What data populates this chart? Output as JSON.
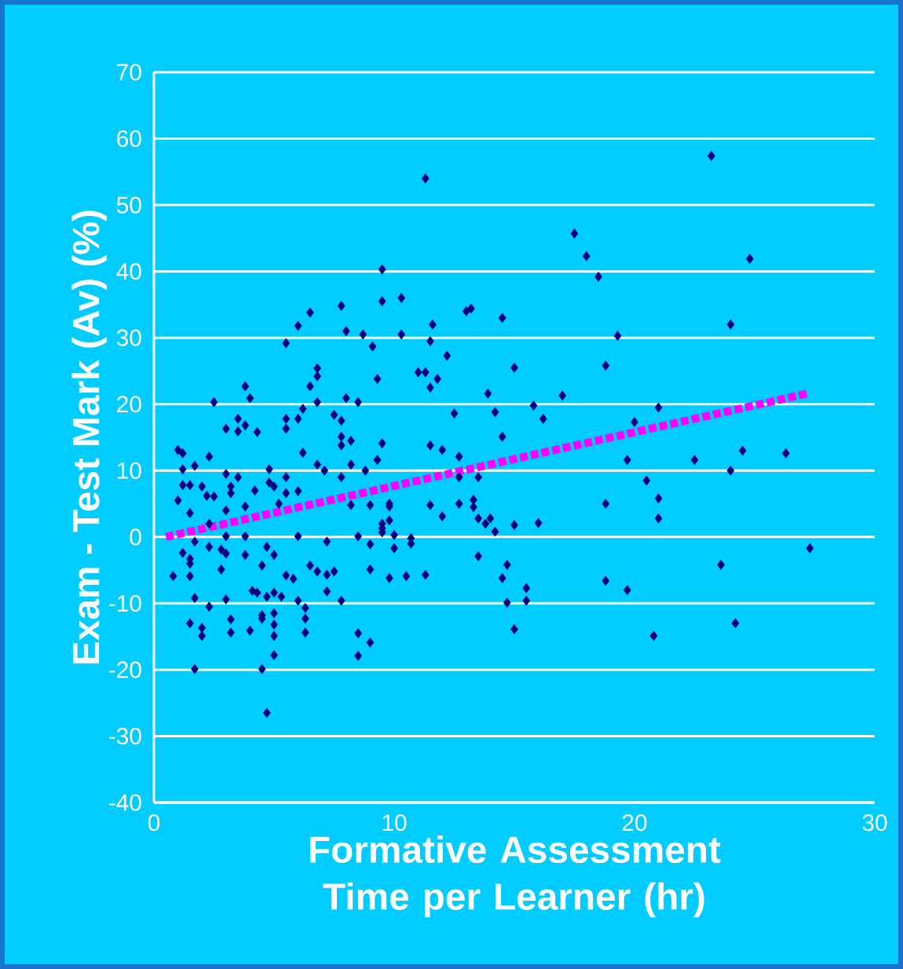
{
  "chart_data": {
    "type": "scatter",
    "xlabel": "Formative Assessment Time per Learner (hr)",
    "ylabel": "Exam - Test Mark (Av) (%)",
    "xlim": [
      0,
      30
    ],
    "ylim": [
      -40,
      70
    ],
    "xticks": [
      0,
      10,
      20,
      30
    ],
    "yticks": [
      -40,
      -30,
      -20,
      -10,
      0,
      10,
      20,
      30,
      40,
      50,
      60,
      70
    ],
    "grid": "y",
    "marker": "diamond",
    "series": [
      {
        "color": "#000080",
        "x": [
          11.3,
          23.2,
          24.8,
          24.0,
          19.3,
          21.0,
          20.0,
          19.7,
          22.5,
          24.5,
          26.3,
          24.0,
          20.5,
          21.0,
          21.0,
          27.3,
          23.6,
          19.7,
          24.2,
          20.8,
          9.5,
          9.5,
          10.3,
          17.5,
          18.0,
          18.5,
          13.0,
          13.2,
          14.5,
          10.3,
          11.6,
          11.5,
          12.2,
          11.0,
          11.3,
          11.8,
          11.5,
          9.3,
          15.0,
          18.8,
          13.9,
          17.0,
          12.5,
          14.2,
          15.8,
          16.2,
          9.5,
          11.5,
          12.0,
          12.7,
          14.5,
          9.3,
          12.7,
          13.5,
          9.8,
          9.8,
          11.5,
          12.7,
          13.3,
          13.3,
          12.0,
          9.8,
          9.5,
          9.5,
          10.0,
          10.7,
          10.7,
          10.0,
          13.5,
          13.8,
          14.0,
          14.2,
          15.0,
          16.0,
          18.8,
          13.5,
          14.7,
          14.5,
          15.5,
          14.7,
          15.5,
          15.0,
          9.8,
          10.5,
          11.3,
          18.8,
          5.5,
          6.0,
          6.5,
          7.8,
          8.0,
          8.7,
          9.1,
          6.8,
          6.8,
          6.5,
          6.8,
          6.2,
          6.0,
          5.5,
          5.5,
          7.5,
          7.8,
          8.0,
          8.5,
          7.8,
          7.8,
          8.2,
          6.2,
          3.8,
          4.0,
          2.5,
          3.5,
          3.0,
          3.5,
          3.8,
          4.3,
          1.0,
          1.2,
          2.3,
          1.7,
          1.2,
          4.8,
          8.2,
          6.8,
          1.2,
          1.5,
          3.0,
          3.5,
          2.0,
          2.2,
          2.5,
          3.2,
          3.2,
          4.2,
          4.8,
          5.0,
          5.5,
          5.5,
          6.0,
          7.1,
          7.8,
          8.8,
          1.0,
          1.5,
          2.3,
          3.0,
          3.8,
          5.2,
          8.2,
          9.0,
          9.5,
          6.0,
          8.5,
          0.8,
          1.2,
          1.5,
          1.5,
          1.5,
          1.7,
          2.3,
          1.5,
          2.0,
          2.0,
          1.7,
          1.7,
          2.3,
          2.8,
          3.0,
          2.8,
          3.8,
          3.0,
          3.2,
          3.2,
          4.0,
          4.3,
          4.1,
          4.5,
          4.5,
          4.5,
          4.5,
          4.7,
          5.0,
          5.0,
          5.0,
          5.0,
          5.0,
          4.7,
          4.7,
          5.0,
          5.3,
          5.5,
          5.8,
          6.0,
          6.3,
          6.3,
          6.3,
          6.5,
          6.8,
          7.2,
          7.2,
          7.5,
          7.2,
          7.8,
          8.5,
          8.5,
          9.0,
          9.0,
          9.0,
          3.0,
          3.8
        ],
        "values": [
          54.0,
          57.4,
          41.9,
          32.0,
          30.3,
          19.5,
          17.3,
          11.6,
          11.6,
          13.0,
          12.6,
          10.0,
          8.5,
          5.8,
          2.8,
          -1.7,
          -4.2,
          -8.0,
          -13.0,
          -14.9,
          40.3,
          35.5,
          36.0,
          45.7,
          42.3,
          39.2,
          34.0,
          34.4,
          33.0,
          30.5,
          32.0,
          29.5,
          27.3,
          24.8,
          24.8,
          23.8,
          22.5,
          23.8,
          25.5,
          25.8,
          21.6,
          21.3,
          18.6,
          18.8,
          19.8,
          17.8,
          14.1,
          13.8,
          13.1,
          12.1,
          15.1,
          11.6,
          9.0,
          9.0,
          5.0,
          4.6,
          4.8,
          5.0,
          5.6,
          4.5,
          3.1,
          2.5,
          1.3,
          0.7,
          0.3,
          -0.2,
          -1.0,
          -1.7,
          2.8,
          2.0,
          2.8,
          0.8,
          1.8,
          2.1,
          5.0,
          -2.9,
          -4.2,
          -6.2,
          -7.7,
          -9.9,
          -9.6,
          -13.9,
          -6.2,
          -5.9,
          -5.7,
          -6.6,
          29.2,
          31.8,
          33.8,
          34.8,
          31.0,
          30.5,
          28.7,
          25.4,
          24.2,
          22.7,
          20.3,
          19.3,
          17.8,
          17.8,
          16.3,
          18.4,
          17.5,
          20.9,
          20.3,
          15.1,
          13.8,
          14.5,
          12.7,
          22.7,
          20.9,
          20.3,
          17.8,
          16.3,
          15.9,
          16.8,
          15.8,
          13.1,
          12.6,
          12.1,
          10.7,
          10.2,
          10.2,
          10.9,
          10.9,
          7.8,
          7.8,
          9.5,
          9.0,
          7.6,
          6.2,
          6.1,
          7.6,
          6.6,
          7.0,
          8.2,
          7.6,
          9.0,
          6.6,
          6.9,
          10.0,
          9.0,
          10.0,
          5.5,
          3.6,
          2.0,
          4.0,
          4.6,
          5.0,
          4.8,
          4.8,
          2.0,
          0.1,
          0.1,
          -5.9,
          -2.4,
          -3.3,
          -4.0,
          -5.9,
          -9.2,
          -10.5,
          -13.0,
          -13.7,
          -14.9,
          -19.9,
          -0.7,
          -1.5,
          -1.9,
          -2.5,
          -4.9,
          -2.7,
          -9.4,
          -12.4,
          -14.4,
          -14.1,
          -8.4,
          -8.1,
          -4.3,
          -11.8,
          -12.3,
          -19.9,
          -1.5,
          -2.7,
          -11.5,
          -13.2,
          -14.9,
          -17.8,
          -26.5,
          -9.0,
          -8.4,
          -9.0,
          -5.8,
          -6.3,
          -9.6,
          -10.7,
          -12.3,
          -14.4,
          -4.3,
          -5.2,
          -0.7,
          -5.7,
          -5.2,
          -8.2,
          -9.6,
          -14.5,
          -17.9,
          -15.9,
          -4.9,
          -1.1,
          0.1,
          0.1
        ]
      },
      {
        "type": "line",
        "color": "#ff00ff",
        "x": [
          0.5,
          27.2
        ],
        "values": [
          0.0,
          21.6
        ],
        "marker": "none",
        "line_style": "dashed"
      }
    ]
  }
}
